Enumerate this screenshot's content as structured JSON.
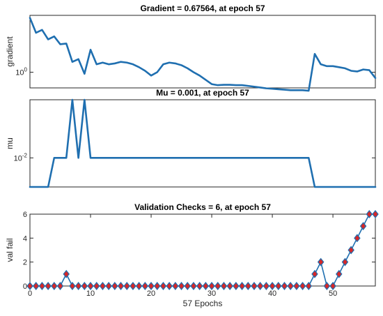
{
  "chart_data": [
    {
      "type": "line",
      "title": "Gradient = 0.67564, at epoch 57",
      "ylabel": "gradient",
      "xlabel": "",
      "xlim": [
        0,
        57
      ],
      "yscale": "log",
      "ylim": [
        0.35,
        45
      ],
      "yticks": [
        1
      ],
      "yticklabels": [
        "10^0"
      ],
      "xticks": [],
      "color": "#1f6fb0",
      "series": [
        {
          "x": [
            0,
            1,
            2,
            3,
            4,
            5,
            6,
            7,
            8,
            9,
            10,
            11,
            12,
            13,
            14,
            15,
            16,
            17,
            18,
            19,
            20,
            21,
            22,
            23,
            24,
            25,
            26,
            27,
            28,
            29,
            30,
            31,
            32,
            33,
            34,
            35,
            36,
            37,
            38,
            39,
            40,
            41,
            42,
            43,
            44,
            45,
            46,
            47,
            48,
            49,
            50,
            51,
            52,
            53,
            54,
            55,
            56,
            57
          ],
          "values": [
            38,
            14,
            17,
            9,
            11,
            6.5,
            6.8,
            2,
            2.4,
            0.9,
            4.5,
            1.7,
            1.9,
            1.7,
            1.8,
            2,
            1.9,
            1.7,
            1.4,
            1.1,
            0.8,
            1,
            1.7,
            1.9,
            1.8,
            1.6,
            1.3,
            1,
            0.8,
            0.6,
            0.45,
            0.42,
            0.43,
            0.43,
            0.42,
            0.42,
            0.4,
            0.38,
            0.36,
            0.34,
            0.33,
            0.32,
            0.31,
            0.3,
            0.3,
            0.3,
            0.29,
            3.4,
            1.7,
            1.5,
            1.5,
            1.4,
            1.3,
            1.1,
            1.05,
            1.2,
            1.15,
            0.68
          ]
        }
      ]
    },
    {
      "type": "line",
      "title": "Mu = 0.001, at epoch 57",
      "ylabel": "mu",
      "xlabel": "",
      "xlim": [
        0,
        57
      ],
      "yscale": "log",
      "ylim": [
        0.001,
        1
      ],
      "yticks": [
        0.01
      ],
      "yticklabels": [
        "10^-2"
      ],
      "xticks": [],
      "color": "#1f6fb0",
      "series": [
        {
          "x": [
            0,
            1,
            2,
            3,
            4,
            5,
            6,
            7,
            8,
            9,
            10,
            11,
            12,
            13,
            14,
            15,
            16,
            17,
            18,
            19,
            20,
            21,
            22,
            23,
            24,
            25,
            26,
            27,
            28,
            29,
            30,
            31,
            32,
            33,
            34,
            35,
            36,
            37,
            38,
            39,
            40,
            41,
            42,
            43,
            44,
            45,
            46,
            47,
            48,
            49,
            50,
            51,
            52,
            53,
            54,
            55,
            56,
            57
          ],
          "values": [
            0.001,
            0.001,
            0.001,
            0.001,
            0.01,
            0.01,
            0.01,
            1,
            0.01,
            1,
            0.01,
            0.01,
            0.01,
            0.01,
            0.01,
            0.01,
            0.01,
            0.01,
            0.01,
            0.01,
            0.01,
            0.01,
            0.01,
            0.01,
            0.01,
            0.01,
            0.01,
            0.01,
            0.01,
            0.01,
            0.01,
            0.01,
            0.01,
            0.01,
            0.01,
            0.01,
            0.01,
            0.01,
            0.01,
            0.01,
            0.01,
            0.01,
            0.01,
            0.01,
            0.01,
            0.01,
            0.01,
            0.001,
            0.001,
            0.001,
            0.001,
            0.001,
            0.001,
            0.001,
            0.001,
            0.001,
            0.001,
            0.001
          ]
        }
      ]
    },
    {
      "type": "line",
      "title": "Validation Checks = 6, at epoch 57",
      "ylabel": "val fail",
      "xlabel": "57 Epochs",
      "xlim": [
        0,
        57
      ],
      "yscale": "linear",
      "ylim": [
        0,
        6
      ],
      "yticks": [
        0,
        2,
        4,
        6
      ],
      "yticklabels": [
        "0",
        "2",
        "4",
        "6"
      ],
      "xticks": [
        0,
        10,
        20,
        30,
        40,
        50
      ],
      "color": "#1f6fb0",
      "marker": "diamond",
      "marker_fill": "#d62728",
      "series": [
        {
          "x": [
            0,
            1,
            2,
            3,
            4,
            5,
            6,
            7,
            8,
            9,
            10,
            11,
            12,
            13,
            14,
            15,
            16,
            17,
            18,
            19,
            20,
            21,
            22,
            23,
            24,
            25,
            26,
            27,
            28,
            29,
            30,
            31,
            32,
            33,
            34,
            35,
            36,
            37,
            38,
            39,
            40,
            41,
            42,
            43,
            44,
            45,
            46,
            47,
            48,
            49,
            50,
            51,
            52,
            53,
            54,
            55,
            56,
            57
          ],
          "values": [
            0,
            0,
            0,
            0,
            0,
            0,
            1,
            0,
            0,
            0,
            0,
            0,
            0,
            0,
            0,
            0,
            0,
            0,
            0,
            0,
            0,
            0,
            0,
            0,
            0,
            0,
            0,
            0,
            0,
            0,
            0,
            0,
            0,
            0,
            0,
            0,
            0,
            0,
            0,
            0,
            0,
            0,
            0,
            0,
            0,
            0,
            0,
            1,
            2,
            0,
            0,
            1,
            2,
            3,
            4,
            5,
            6,
            6
          ]
        }
      ]
    }
  ]
}
